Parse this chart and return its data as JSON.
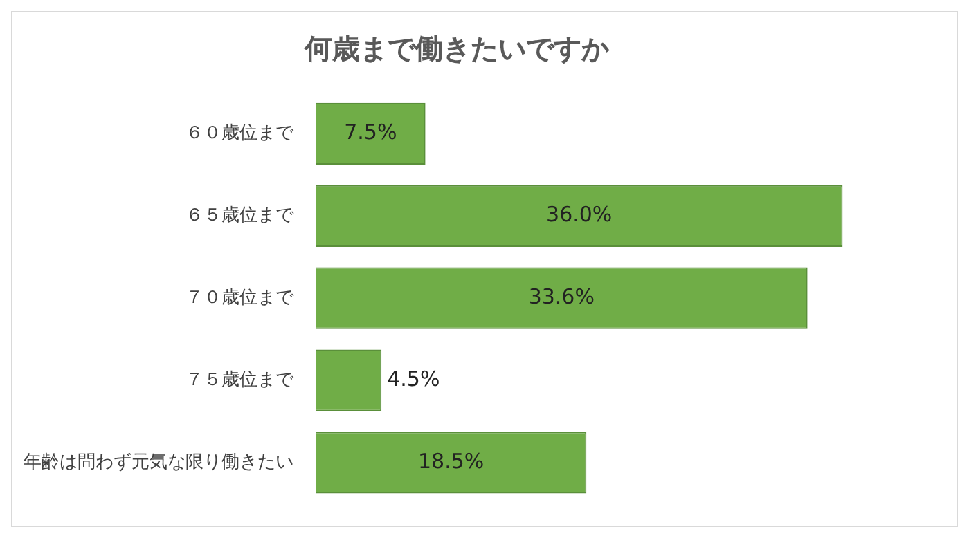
{
  "chart_data": {
    "type": "bar",
    "orientation": "horizontal",
    "title": "何歳まで働きたいですか",
    "categories": [
      "６０歳位まで",
      "６５歳位まで",
      "７０歳位まで",
      "７５歳位まで",
      "年齢は問わず元気な限り働きたい"
    ],
    "values": [
      7.5,
      36.0,
      33.6,
      4.5,
      18.5
    ],
    "value_labels": [
      "7.5%",
      "36.0%",
      "33.6%",
      "4.5%",
      "18.5%"
    ],
    "color": "#70ad47",
    "legend": false
  }
}
